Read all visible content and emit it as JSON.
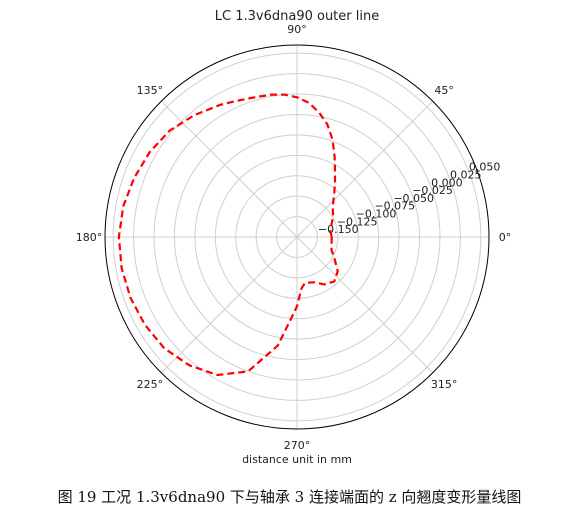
{
  "chart_data": {
    "type": "polar-line",
    "title": "LC 1.3v6dna90 outer line",
    "xlabel": "distance unit in mm",
    "angle_ticks": [
      "0°",
      "45°",
      "90°",
      "135°",
      "180°",
      "225°",
      "270°",
      "315°"
    ],
    "radial_ticks": [
      "−0.150",
      "−0.125",
      "−0.100",
      "−0.075",
      "−0.050",
      "−0.025",
      "0.000",
      "0.025",
      "0.050"
    ],
    "rlim": [
      -0.175,
      0.06
    ],
    "grid": true,
    "series": [
      {
        "color": "#ff0000",
        "style": "dashed",
        "theta_deg": [
          0,
          10,
          20,
          30,
          40,
          45,
          50,
          55,
          60,
          65,
          70,
          75,
          80,
          85,
          90,
          95,
          100,
          105,
          110,
          115,
          120,
          130,
          140,
          150,
          160,
          170,
          180,
          190,
          200,
          210,
          220,
          230,
          240,
          250,
          260,
          270,
          275,
          280,
          290,
          300,
          310,
          320,
          330,
          340,
          350,
          360
        ],
        "r": [
          -0.1325,
          -0.1335,
          -0.13,
          -0.124,
          -0.118,
          -0.112,
          -0.104,
          -0.094,
          -0.082,
          -0.066,
          -0.048,
          -0.032,
          -0.02,
          -0.01,
          -0.004,
          0.0,
          0.002,
          0.003,
          0.005,
          0.008,
          0.012,
          0.02,
          0.028,
          0.033,
          0.037,
          0.041,
          0.043,
          0.043,
          0.042,
          0.04,
          0.037,
          0.03,
          0.02,
          0.0,
          -0.04,
          -0.09,
          -0.112,
          -0.118,
          -0.116,
          -0.108,
          -0.104,
          -0.11,
          -0.122,
          -0.13,
          -0.132,
          -0.1325
        ]
      }
    ]
  },
  "caption": "图 19  工况  1.3v6dna90  下与轴承 3 连接端面的 z 向翘度变形量线图"
}
